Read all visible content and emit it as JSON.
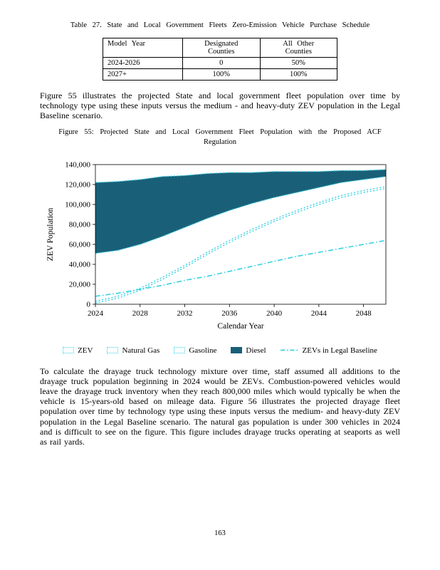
{
  "table_section": {
    "caption": "Table 27. State and Local Government Fleets Zero-Emission Vehicle Purchase Schedule",
    "columns": [
      "Model Year",
      "Designated\nCounties",
      "All Other\nCounties"
    ],
    "rows": [
      {
        "model_year": "2024-2026",
        "designated": "0",
        "all_other": "50%"
      },
      {
        "model_year": "2027+",
        "designated": "100%",
        "all_other": "100%"
      }
    ]
  },
  "paragraph1": "Figure 55 illustrates the projected State and local government fleet population over time by technology type using these inputs versus the medium - and heavy-duty ZEV population in the Legal Baseline scenario.",
  "figure": {
    "caption": "Figure 55: Projected State and Local Government Fleet Population with the Proposed ACF Regulation"
  },
  "chart_data": {
    "type": "area",
    "title": "Figure 55: Projected State and Local Government Fleet Population with the Proposed ACF Regulation",
    "xlabel": "Calendar Year",
    "ylabel": "ZEV Population",
    "xlim": [
      2024,
      2050
    ],
    "ylim": [
      0,
      140000
    ],
    "xticks": [
      2024,
      2028,
      2032,
      2036,
      2040,
      2044,
      2048
    ],
    "yticks": [
      0,
      20000,
      40000,
      60000,
      80000,
      100000,
      120000,
      140000
    ],
    "x": [
      2024,
      2026,
      2028,
      2030,
      2032,
      2034,
      2036,
      2038,
      2040,
      2042,
      2044,
      2046,
      2048,
      2050
    ],
    "stack_order": [
      "ZEV",
      "Natural Gas",
      "Gasoline",
      "Diesel"
    ],
    "series": [
      {
        "name": "ZEV",
        "values": [
          1000,
          6000,
          14000,
          25000,
          37000,
          50000,
          62000,
          73000,
          83000,
          92000,
          100000,
          107000,
          112000,
          116000
        ]
      },
      {
        "name": "Natural Gas",
        "values": [
          2000,
          2000,
          2000,
          2000,
          2000,
          2000,
          2000,
          2000,
          2000,
          2000,
          2000,
          2000,
          2000,
          2000
        ]
      },
      {
        "name": "Gasoline",
        "values": [
          48000,
          46000,
          44000,
          41000,
          38000,
          34000,
          30000,
          26000,
          22000,
          18000,
          15000,
          13000,
          11000,
          10000
        ]
      },
      {
        "name": "Diesel",
        "values": [
          71000,
          69000,
          65000,
          60000,
          52000,
          45000,
          38000,
          31000,
          26000,
          21000,
          16000,
          12000,
          9000,
          7000
        ]
      },
      {
        "name": "ZEVs in Legal Baseline",
        "role": "line",
        "values": [
          8000,
          11000,
          15000,
          19000,
          24000,
          28000,
          33000,
          38000,
          43000,
          48000,
          52000,
          56000,
          60000,
          64000
        ]
      }
    ],
    "colors": {
      "diesel_fill": "#1a5f78",
      "line": "#35d2e2"
    },
    "legend": [
      {
        "label": "ZEV",
        "marker": "area-outline"
      },
      {
        "label": "Natural Gas",
        "marker": "area-outline"
      },
      {
        "label": "Gasoline",
        "marker": "area-outline"
      },
      {
        "label": "Diesel",
        "marker": "area-fill"
      },
      {
        "label": "ZEVs in Legal Baseline",
        "marker": "dashdot-line"
      }
    ],
    "legend_position": "bottom",
    "grid": false
  },
  "paragraph2": "To calculate the drayage truck technology mixture over time, staff assumed all additions to the drayage truck population beginning in 2024 would be ZEVs. Combustion-powered vehicles would leave the drayage truck inventory when they reach 800,000 miles which would typically be when the vehicle is 15-years-old based on mileage data. Figure 56 illustrates the projected drayage fleet population over time by technology type using these inputs versus the medium- and heavy-duty ZEV population in the Legal Baseline scenario. The natural gas population is under 300 vehicles in 2024 and is difficult to see on the figure. This figure includes drayage trucks operating at seaports as well as rail yards.",
  "page_number": "163"
}
